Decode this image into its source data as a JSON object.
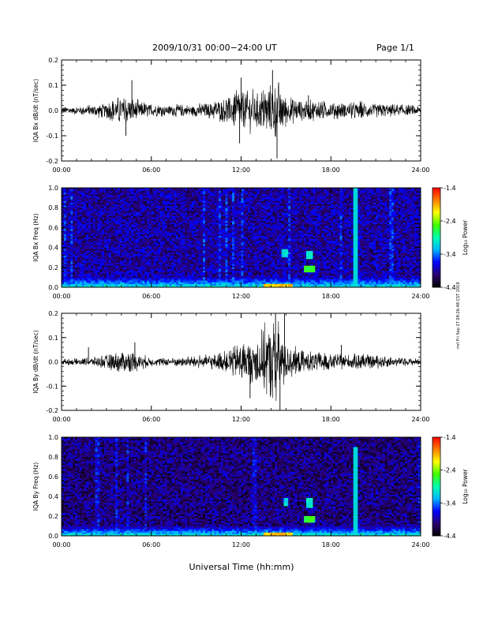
{
  "header": {
    "title": "2009/10/31  00:00−24:00 UT",
    "page": "Page 1/1"
  },
  "side_note": "mrl Fri Sep 27 09:26:48 CST 2019",
  "colorbar": {
    "label": "Log₁₀ Power",
    "ticks": [
      "-1.4",
      "-2.4",
      "-3.4",
      "-4.4"
    ],
    "range": [
      -4.4,
      -1.4
    ],
    "colors": [
      "#000000",
      "#2a0070",
      "#0000ff",
      "#00b4ff",
      "#00ffb0",
      "#40ff00",
      "#ffff00",
      "#ff8000",
      "#ff0000"
    ]
  },
  "chart_data": [
    {
      "type": "line",
      "ylabel": "IQA Bx dB/dt (nT/sec)",
      "ylim": [
        -0.2,
        0.2
      ],
      "yticks": [
        "0.2",
        "0.1",
        "0.0",
        "-0.1",
        "-0.2"
      ],
      "xticks": [
        "00:00",
        "06:00",
        "12:00",
        "18:00",
        "24:00"
      ],
      "xlim": [
        0,
        24
      ],
      "series_color": "#000000",
      "envelope": {
        "hours": [
          0,
          1,
          2,
          3,
          4,
          5,
          6,
          7,
          8,
          9,
          10,
          11,
          11.5,
          12,
          12.5,
          13,
          13.5,
          14,
          14.5,
          15,
          16,
          17,
          18,
          19,
          20,
          21,
          22,
          23,
          24
        ],
        "amplitude": [
          0.02,
          0.02,
          0.025,
          0.04,
          0.07,
          0.05,
          0.03,
          0.025,
          0.03,
          0.03,
          0.04,
          0.06,
          0.09,
          0.12,
          0.1,
          0.08,
          0.1,
          0.12,
          0.14,
          0.07,
          0.05,
          0.05,
          0.04,
          0.035,
          0.04,
          0.035,
          0.03,
          0.025,
          0.02
        ]
      },
      "spikes": [
        {
          "hour": 4.7,
          "value": 0.12
        },
        {
          "hour": 4.3,
          "value": -0.1
        },
        {
          "hour": 12.0,
          "value": 0.13
        },
        {
          "hour": 11.9,
          "value": -0.13
        },
        {
          "hour": 14.1,
          "value": 0.16
        },
        {
          "hour": 14.4,
          "value": -0.19
        },
        {
          "hour": 16.5,
          "value": 0.06
        }
      ]
    },
    {
      "type": "heatmap",
      "ylabel": "IQA Bx Freq (Hz)",
      "ylim": [
        0.0,
        1.0
      ],
      "yticks": [
        "1.0",
        "0.8",
        "0.6",
        "0.4",
        "0.2",
        "0.0"
      ],
      "xticks": [
        "00:00",
        "06:00",
        "12:00",
        "18:00",
        "24:00"
      ],
      "xlim": [
        0,
        24
      ],
      "zlabel": "Log₁₀ Power",
      "zrange": [
        -4.4,
        -1.4
      ],
      "background_level": -3.9,
      "low_band": {
        "max_freq": 0.1,
        "level": -3.0
      },
      "features": [
        {
          "kind": "vertical_line",
          "hour": 19.6,
          "freq_range": [
            0.0,
            1.0
          ],
          "level": -3.1
        },
        {
          "kind": "patch",
          "hour_range": [
            16.2,
            17.0
          ],
          "freq_range": [
            0.15,
            0.22
          ],
          "level": -2.6
        },
        {
          "kind": "patch",
          "hour_range": [
            14.7,
            15.1
          ],
          "freq_range": [
            0.3,
            0.38
          ],
          "level": -3.1
        },
        {
          "kind": "patch",
          "hour_range": [
            16.4,
            16.8
          ],
          "freq_range": [
            0.28,
            0.36
          ],
          "level": -3.0
        },
        {
          "kind": "patch",
          "hour_range": [
            13.5,
            15.5
          ],
          "freq_range": [
            0.0,
            0.03
          ],
          "level": -2.0
        }
      ]
    },
    {
      "type": "line",
      "ylabel": "IQA By dB/dt (nT/sec)",
      "ylim": [
        -0.2,
        0.2
      ],
      "yticks": [
        "0.2",
        "0.1",
        "0.0",
        "-0.1",
        "-0.2"
      ],
      "xticks": [
        "00:00",
        "06:00",
        "12:00",
        "18:00",
        "24:00"
      ],
      "xlim": [
        0,
        24
      ],
      "series_color": "#000000",
      "envelope": {
        "hours": [
          0,
          1,
          2,
          3,
          4,
          5,
          6,
          7,
          8,
          9,
          10,
          11,
          11.5,
          12,
          12.5,
          13,
          13.5,
          14,
          14.5,
          15,
          16,
          17,
          18,
          19,
          20,
          21,
          22,
          23,
          24
        ],
        "amplitude": [
          0.015,
          0.015,
          0.02,
          0.035,
          0.06,
          0.045,
          0.02,
          0.02,
          0.025,
          0.03,
          0.035,
          0.05,
          0.08,
          0.1,
          0.1,
          0.12,
          0.16,
          0.2,
          0.2,
          0.08,
          0.06,
          0.05,
          0.04,
          0.035,
          0.04,
          0.03,
          0.025,
          0.02,
          0.015
        ]
      },
      "spikes": [
        {
          "hour": 4.9,
          "value": 0.08
        },
        {
          "hour": 1.8,
          "value": 0.06
        },
        {
          "hour": 12.6,
          "value": -0.15
        },
        {
          "hour": 14.3,
          "value": 0.2
        },
        {
          "hour": 14.6,
          "value": -0.2
        },
        {
          "hour": 14.9,
          "value": 0.2
        },
        {
          "hour": 18.7,
          "value": 0.07
        }
      ]
    },
    {
      "type": "heatmap",
      "ylabel": "IQA By Freq (Hz)",
      "ylim": [
        0.0,
        1.0
      ],
      "yticks": [
        "1.0",
        "0.8",
        "0.6",
        "0.4",
        "0.2",
        "0.0"
      ],
      "xticks": [
        "00:00",
        "06:00",
        "12:00",
        "18:00",
        "24:00"
      ],
      "xlim": [
        0,
        24
      ],
      "zlabel": "Log₁₀ Power",
      "zrange": [
        -4.4,
        -1.4
      ],
      "background_level": -4.0,
      "low_band": {
        "max_freq": 0.1,
        "level": -3.0
      },
      "features": [
        {
          "kind": "vertical_line",
          "hour": 19.6,
          "freq_range": [
            0.0,
            0.9
          ],
          "level": -3.1
        },
        {
          "kind": "patch",
          "hour_range": [
            16.2,
            17.0
          ],
          "freq_range": [
            0.14,
            0.2
          ],
          "level": -2.6
        },
        {
          "kind": "patch",
          "hour_range": [
            14.8,
            15.2
          ],
          "freq_range": [
            0.3,
            0.38
          ],
          "level": -3.1
        },
        {
          "kind": "patch",
          "hour_range": [
            16.4,
            16.8
          ],
          "freq_range": [
            0.28,
            0.38
          ],
          "level": -3.0
        },
        {
          "kind": "patch",
          "hour_range": [
            13.5,
            15.5
          ],
          "freq_range": [
            0.0,
            0.03
          ],
          "level": -2.0
        }
      ]
    }
  ],
  "xaxis_label": "Universal Time (hh:mm)"
}
